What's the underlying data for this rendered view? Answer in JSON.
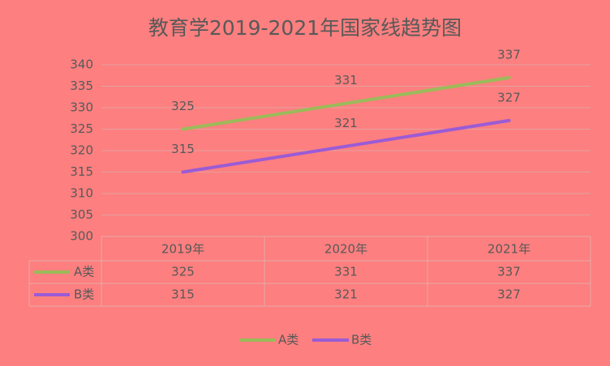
{
  "chart_data": {
    "type": "line",
    "title": "教育学2019-2021年国家线趋势图",
    "categories": [
      "2019年",
      "2020年",
      "2021年"
    ],
    "series": [
      {
        "name": "A类",
        "color": "#9bbb59",
        "values": [
          325,
          331,
          337
        ]
      },
      {
        "name": "B类",
        "color": "#9b5bd6",
        "values": [
          315,
          321,
          327
        ]
      }
    ],
    "ylim": [
      300,
      340
    ],
    "yticks": [
      300,
      305,
      310,
      315,
      320,
      325,
      330,
      335,
      340
    ],
    "grid": true,
    "data_table": true,
    "legend": "bottom",
    "background": "#fd7f7f"
  }
}
